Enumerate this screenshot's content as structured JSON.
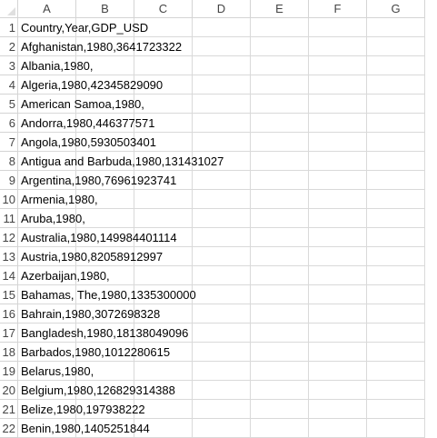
{
  "columns": [
    "A",
    "B",
    "C",
    "D",
    "E",
    "F",
    "G"
  ],
  "rows": [
    {
      "num": "1",
      "text": "Country,Year,GDP_USD"
    },
    {
      "num": "2",
      "text": "Afghanistan,1980,3641723322"
    },
    {
      "num": "3",
      "text": "Albania,1980,"
    },
    {
      "num": "4",
      "text": "Algeria,1980,42345829090"
    },
    {
      "num": "5",
      "text": "American Samoa,1980,"
    },
    {
      "num": "6",
      "text": "Andorra,1980,446377571"
    },
    {
      "num": "7",
      "text": "Angola,1980,5930503401"
    },
    {
      "num": "8",
      "text": "Antigua and Barbuda,1980,131431027"
    },
    {
      "num": "9",
      "text": "Argentina,1980,76961923741"
    },
    {
      "num": "10",
      "text": "Armenia,1980,"
    },
    {
      "num": "11",
      "text": "Aruba,1980,"
    },
    {
      "num": "12",
      "text": "Australia,1980,149984401114"
    },
    {
      "num": "13",
      "text": "Austria,1980,82058912997"
    },
    {
      "num": "14",
      "text": "Azerbaijan,1980,"
    },
    {
      "num": "15",
      "text": "Bahamas, The,1980,1335300000"
    },
    {
      "num": "16",
      "text": "Bahrain,1980,3072698328"
    },
    {
      "num": "17",
      "text": "Bangladesh,1980,18138049096"
    },
    {
      "num": "18",
      "text": "Barbados,1980,1012280615"
    },
    {
      "num": "19",
      "text": "Belarus,1980,"
    },
    {
      "num": "20",
      "text": "Belgium,1980,126829314388"
    },
    {
      "num": "21",
      "text": "Belize,1980,197938222"
    },
    {
      "num": "22",
      "text": "Benin,1980,1405251844"
    }
  ]
}
